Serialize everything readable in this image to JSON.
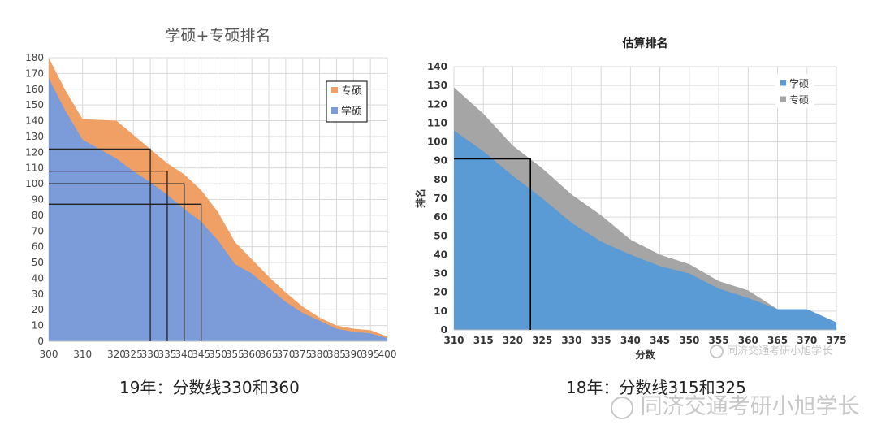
{
  "chart_data": [
    {
      "type": "area",
      "title": "学硕+专硕排名",
      "x": [
        300,
        305,
        310,
        320,
        325,
        330,
        335,
        340,
        345,
        350,
        355,
        360,
        365,
        370,
        375,
        380,
        385,
        390,
        395,
        400
      ],
      "series": [
        {
          "name": "学硕",
          "values": [
            167,
            146,
            128,
            116,
            108,
            101,
            93,
            84,
            76,
            64,
            49,
            43,
            34,
            25,
            18,
            13,
            8,
            6,
            5,
            2
          ]
        },
        {
          "name": "专硕",
          "values": [
            13,
            13,
            13,
            24,
            23,
            21,
            20,
            22,
            20,
            18,
            14,
            9,
            7,
            6,
            4,
            2,
            2,
            2,
            2,
            1
          ]
        }
      ],
      "stacked": true,
      "xlim": [
        300,
        400
      ],
      "ylim": [
        0,
        180
      ],
      "x_ticks": [
        300,
        310,
        320,
        325,
        330,
        335,
        340,
        345,
        350,
        355,
        360,
        365,
        370,
        375,
        380,
        385,
        390,
        395,
        400
      ],
      "y_ticks": [
        0,
        10,
        20,
        30,
        40,
        50,
        60,
        70,
        80,
        90,
        100,
        110,
        120,
        130,
        140,
        150,
        160,
        170,
        180
      ],
      "legend": [
        "专硕",
        "学硕"
      ],
      "legend_position": "top-right",
      "grid": true,
      "colors": {
        "学硕": "#7b9cd8",
        "专硕": "#f0a064"
      },
      "guides": [
        {
          "x": 330,
          "y": 122
        },
        {
          "x": 335,
          "y": 108
        },
        {
          "x": 340,
          "y": 100
        },
        {
          "x": 345,
          "y": 87
        }
      ]
    },
    {
      "type": "area",
      "title": "估算排名",
      "xlabel": "分数",
      "ylabel": "排名",
      "x": [
        310,
        315,
        320,
        325,
        330,
        335,
        340,
        345,
        350,
        355,
        360,
        365,
        370,
        375
      ],
      "series": [
        {
          "name": "学硕",
          "values": [
            106,
            95,
            82,
            70,
            57,
            47,
            40,
            34,
            30,
            22,
            17,
            11,
            11,
            4
          ]
        },
        {
          "name": "专硕",
          "values": [
            23,
            20,
            16,
            16,
            15,
            14,
            8,
            6,
            5,
            4,
            4,
            0,
            0,
            0
          ]
        }
      ],
      "stacked": true,
      "xlim": [
        310,
        375
      ],
      "ylim": [
        0,
        140
      ],
      "x_ticks": [
        310,
        315,
        320,
        325,
        330,
        335,
        340,
        345,
        350,
        355,
        360,
        365,
        370,
        375
      ],
      "y_ticks": [
        0,
        10,
        20,
        30,
        40,
        50,
        60,
        70,
        80,
        90,
        100,
        110,
        120,
        130,
        140
      ],
      "legend": [
        "学硕",
        "专硕"
      ],
      "legend_position": "top-right",
      "grid": true,
      "colors": {
        "学硕": "#5b9bd5",
        "专硕": "#a5a5a5"
      },
      "guides": [
        {
          "x": 323,
          "y": 91
        }
      ]
    }
  ],
  "captions": {
    "left": "19年：分数线330和360",
    "right": "18年：分数线315和325"
  },
  "watermark": {
    "small": "同济交通考研小旭学长",
    "large": "同济交通考研小旭学长"
  }
}
